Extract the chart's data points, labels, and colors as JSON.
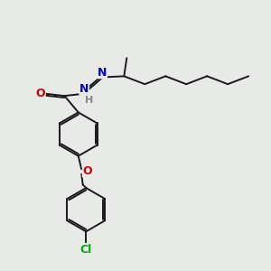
{
  "background_color": "#e8eae8",
  "bond_color": "#1a1a1a",
  "bond_width": 1.4,
  "colors": {
    "O": "#cc0000",
    "N": "#0000cc",
    "Cl": "#00aa00",
    "H": "#888888",
    "C": "#1a1a1a"
  },
  "figsize": [
    3.0,
    3.0
  ],
  "dpi": 100
}
